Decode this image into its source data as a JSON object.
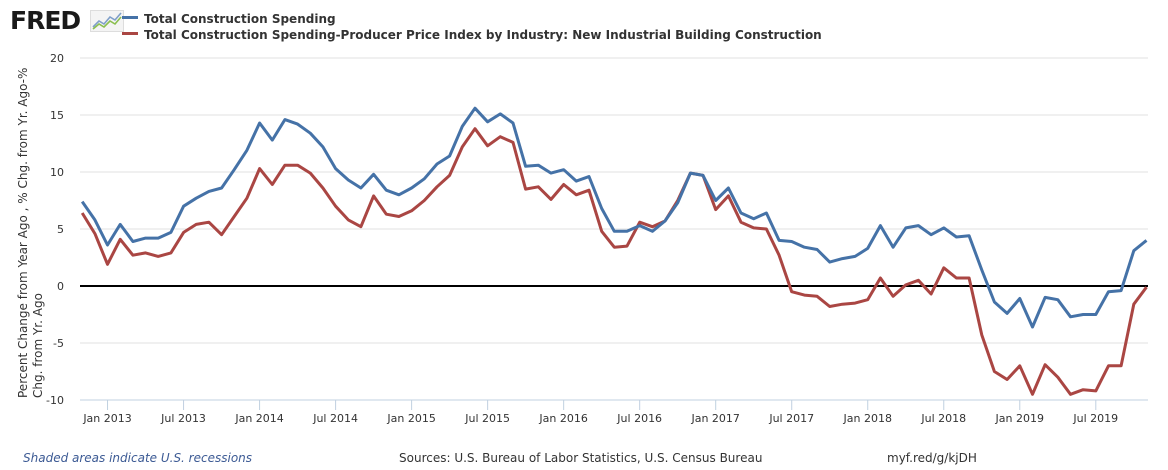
{
  "logo": {
    "text": "FRED",
    "registered": "®"
  },
  "colors": {
    "series1": "#4572a7",
    "series2": "#aa4643",
    "zero_line": "#000000",
    "grid": "#e0e0e0",
    "axis": "#c0d0e0"
  },
  "footer": {
    "recession_note": "Shaded areas indicate U.S. recessions",
    "sources": "Sources: U.S. Bureau of Labor Statistics, U.S. Census Bureau",
    "short_link": "myf.red/g/kjDH"
  },
  "chart_data": {
    "type": "line",
    "title": "",
    "xlabel": "",
    "ylabel": "Percent Change from Year Ago , % Chg. from Yr. Ago-% Chg. from Yr. Ago",
    "ylabel_lines": [
      "Percent Change from Year Ago , % Chg. from Yr. Ago-%",
      "Chg. from Yr. Ago"
    ],
    "ylim": [
      -10,
      20
    ],
    "yticks": [
      -10,
      -5,
      0,
      5,
      10,
      15,
      20
    ],
    "grid": true,
    "legend_position": "top-left",
    "x_start": "2012-11",
    "x_end": "2019-11",
    "x_frequency": "monthly",
    "xticks": [
      {
        "label": "Jan 2013",
        "index": 2
      },
      {
        "label": "Jul 2013",
        "index": 8
      },
      {
        "label": "Jan 2014",
        "index": 14
      },
      {
        "label": "Jul 2014",
        "index": 20
      },
      {
        "label": "Jan 2015",
        "index": 26
      },
      {
        "label": "Jul 2015",
        "index": 32
      },
      {
        "label": "Jan 2016",
        "index": 38
      },
      {
        "label": "Jul 2016",
        "index": 44
      },
      {
        "label": "Jan 2017",
        "index": 50
      },
      {
        "label": "Jul 2017",
        "index": 56
      },
      {
        "label": "Jan 2018",
        "index": 62
      },
      {
        "label": "Jul 2018",
        "index": 68
      },
      {
        "label": "Jan 2019",
        "index": 74
      },
      {
        "label": "Jul 2019",
        "index": 80
      }
    ],
    "series": [
      {
        "name": "Total Construction Spending",
        "color": "#4572a7",
        "values": [
          7.4,
          5.8,
          3.6,
          5.4,
          3.9,
          4.2,
          4.2,
          4.7,
          7.0,
          7.7,
          8.3,
          8.6,
          10.2,
          11.9,
          14.3,
          12.8,
          14.6,
          14.2,
          13.4,
          12.2,
          10.3,
          9.3,
          8.6,
          9.8,
          8.4,
          8.0,
          8.6,
          9.4,
          10.7,
          11.4,
          14.0,
          15.6,
          14.4,
          15.1,
          14.3,
          10.5,
          10.6,
          9.9,
          10.2,
          9.2,
          9.6,
          6.8,
          4.8,
          4.8,
          5.3,
          4.8,
          5.7,
          7.3,
          9.9,
          9.7,
          7.5,
          8.6,
          6.4,
          5.9,
          6.4,
          4.0,
          3.9,
          3.4,
          3.2,
          2.1,
          2.4,
          2.6,
          3.3,
          5.3,
          3.4,
          5.1,
          5.3,
          4.5,
          5.1,
          4.3,
          4.4,
          1.4,
          -1.4,
          -2.4,
          -1.1,
          -3.6,
          -1.0,
          -1.2,
          -2.7,
          -2.5,
          -2.5,
          -0.5,
          -0.4,
          3.1,
          4.0
        ]
      },
      {
        "name": "Total Construction Spending-Producer Price Index by Industry: New Industrial Building Construction",
        "color": "#aa4643",
        "values": [
          6.4,
          4.6,
          1.9,
          4.1,
          2.7,
          2.9,
          2.6,
          2.9,
          4.7,
          5.4,
          5.6,
          4.5,
          6.1,
          7.7,
          10.3,
          8.9,
          10.6,
          10.6,
          9.9,
          8.6,
          7.0,
          5.8,
          5.2,
          7.9,
          6.3,
          6.1,
          6.6,
          7.5,
          8.7,
          9.7,
          12.2,
          13.8,
          12.3,
          13.1,
          12.6,
          8.5,
          8.7,
          7.6,
          8.9,
          8.0,
          8.4,
          4.8,
          3.4,
          3.5,
          5.6,
          5.2,
          5.7,
          7.5,
          9.9,
          9.7,
          6.7,
          7.9,
          5.6,
          5.1,
          5.0,
          2.7,
          -0.5,
          -0.8,
          -0.9,
          -1.8,
          -1.6,
          -1.5,
          -1.2,
          0.7,
          -0.9,
          0.1,
          0.5,
          -0.7,
          1.6,
          0.7,
          0.7,
          -4.3,
          -7.5,
          -8.2,
          -7.0,
          -9.5,
          -6.9,
          -8.0,
          -9.5,
          -9.1,
          -9.2,
          -7.0,
          -7.0,
          -1.6,
          -0.1
        ]
      }
    ]
  }
}
